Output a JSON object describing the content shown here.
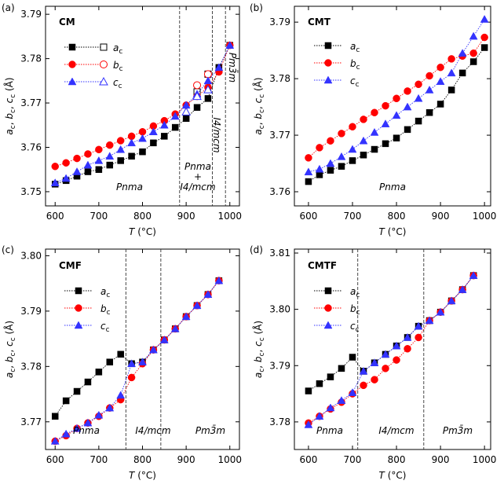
{
  "chart_data": [
    {
      "type": "line",
      "panel": "(a)",
      "x_label": "T (°C)",
      "y_label": "ac, bc, cc (Å)",
      "xlim": [
        578,
        1022
      ],
      "xticks": [
        600,
        700,
        800,
        900,
        1000
      ],
      "ylim": [
        3.7468,
        3.7918
      ],
      "yticks": [
        3.75,
        3.76,
        3.77,
        3.78,
        3.79
      ],
      "x": [
        600,
        625,
        650,
        675,
        700,
        725,
        750,
        775,
        800,
        825,
        850,
        875,
        900,
        925,
        950,
        975,
        1000
      ],
      "vlines": [
        885,
        960,
        990
      ],
      "annotations": [
        "CM",
        "Pnma",
        [
          "Pnma",
          "+",
          "I4/mcm"
        ],
        "I4/mcm",
        "Pm3̄m"
      ],
      "series": [
        {
          "name": "ac",
          "color": "#000000",
          "marker": "square",
          "values": [
            3.7517,
            3.7525,
            3.7535,
            3.7545,
            3.755,
            3.756,
            3.757,
            3.758,
            3.759,
            3.761,
            3.7625,
            3.7645,
            3.7665,
            3.769,
            3.771,
            3.778,
            3.783
          ],
          "open_values": [
            null,
            null,
            null,
            null,
            null,
            null,
            null,
            null,
            null,
            null,
            null,
            null,
            null,
            3.7725,
            3.7765,
            null,
            null
          ]
        },
        {
          "name": "bc",
          "color": "#ff0000",
          "marker": "circle",
          "values": [
            3.7557,
            3.7565,
            3.7575,
            3.7585,
            3.7595,
            3.7605,
            3.7615,
            3.7625,
            3.7635,
            3.7648,
            3.766,
            3.7675,
            3.7695,
            3.7715,
            3.7735,
            3.777,
            3.783
          ],
          "open_values": [
            null,
            null,
            null,
            null,
            null,
            null,
            null,
            null,
            null,
            null,
            null,
            null,
            null,
            3.774,
            3.7765,
            null,
            null
          ]
        },
        {
          "name": "cc",
          "color": "#3333ff",
          "marker": "triangle",
          "values": [
            3.752,
            3.753,
            3.7545,
            3.756,
            3.757,
            3.758,
            3.7595,
            3.761,
            3.762,
            3.7635,
            3.765,
            3.767,
            3.7695,
            3.772,
            3.775,
            3.778,
            3.783
          ],
          "open_values": [
            null,
            null,
            null,
            null,
            null,
            null,
            null,
            null,
            null,
            null,
            null,
            null,
            3.768,
            3.7715,
            3.773,
            null,
            null
          ]
        }
      ]
    },
    {
      "type": "line",
      "panel": "(b)",
      "x_label": "T (°C)",
      "y_label": "ac, bc, cc (Å)",
      "xlim": [
        568,
        1014
      ],
      "xticks": [
        600,
        700,
        800,
        900,
        1000
      ],
      "ylim": [
        3.7575,
        3.7928
      ],
      "yticks": [
        3.76,
        3.77,
        3.78,
        3.79
      ],
      "x": [
        600,
        625,
        650,
        675,
        700,
        725,
        750,
        775,
        800,
        825,
        850,
        875,
        900,
        925,
        950,
        975,
        1000
      ],
      "vlines": [],
      "annotations": [
        "CMT",
        "Pnma"
      ],
      "series": [
        {
          "name": "ac",
          "color": "#000000",
          "marker": "square",
          "values": [
            3.7618,
            3.763,
            3.7638,
            3.7645,
            3.7655,
            3.7665,
            3.7675,
            3.7685,
            3.7695,
            3.771,
            3.7725,
            3.774,
            3.7755,
            3.778,
            3.781,
            3.783,
            3.7855
          ]
        },
        {
          "name": "bc",
          "color": "#ff0000",
          "marker": "circle",
          "values": [
            3.766,
            3.7678,
            3.769,
            3.7703,
            3.7715,
            3.7728,
            3.774,
            3.7752,
            3.7765,
            3.7778,
            3.779,
            3.7805,
            3.782,
            3.7835,
            3.784,
            3.7845,
            3.7873
          ]
        },
        {
          "name": "cc",
          "color": "#3333ff",
          "marker": "triangle",
          "values": [
            3.7635,
            3.764,
            3.765,
            3.7662,
            3.7675,
            3.769,
            3.7705,
            3.772,
            3.7735,
            3.775,
            3.7765,
            3.778,
            3.7795,
            3.781,
            3.7845,
            3.7875,
            3.7905
          ]
        }
      ]
    },
    {
      "type": "line",
      "panel": "(c)",
      "x_label": "T (°C)",
      "y_label": "ac, bc, cc (Å)",
      "xlim": [
        578,
        1022
      ],
      "xticks": [
        600,
        700,
        800,
        900,
        1000
      ],
      "ylim": [
        3.765,
        3.8012
      ],
      "yticks": [
        3.77,
        3.78,
        3.79,
        {
          "value": 3.8,
          "label": "3.80"
        }
      ],
      "x": [
        600,
        625,
        650,
        675,
        700,
        725,
        750,
        775,
        800,
        825,
        850,
        875,
        900,
        925,
        950,
        975
      ],
      "vlines": [
        762,
        842
      ],
      "annotations": [
        "CMF",
        "Pnma",
        "I4/mcm",
        "Pm3̄m"
      ],
      "series": [
        {
          "name": "ac",
          "color": "#000000",
          "marker": "square",
          "values": [
            3.771,
            3.7738,
            3.7755,
            3.7772,
            3.779,
            3.7808,
            3.7822,
            3.7805,
            3.7808,
            3.783,
            3.7848,
            3.7868,
            3.789,
            3.791,
            3.793,
            3.7955
          ]
        },
        {
          "name": "bc",
          "color": "#ff0000",
          "marker": "circle",
          "values": [
            3.7665,
            3.7675,
            3.7688,
            3.7698,
            3.771,
            3.7725,
            3.774,
            3.778,
            3.7805,
            3.783,
            3.7848,
            3.7868,
            3.789,
            3.791,
            3.793,
            3.7955
          ]
        },
        {
          "name": "cc",
          "color": "#3333ff",
          "marker": "triangle",
          "values": [
            3.7665,
            3.7678,
            3.7688,
            3.7698,
            3.7712,
            3.7725,
            3.7748,
            3.7805,
            3.7808,
            3.783,
            3.7848,
            3.7868,
            3.789,
            3.791,
            3.793,
            3.7955
          ]
        }
      ]
    },
    {
      "type": "line",
      "panel": "(d)",
      "x_label": "T (°C)",
      "y_label": "ac, bc, cc (Å)",
      "xlim": [
        568,
        1014
      ],
      "xticks": [
        600,
        700,
        800,
        900,
        1000
      ],
      "ylim": [
        3.7751,
        3.8107
      ],
      "yticks": [
        3.78,
        3.79,
        {
          "value": 3.8,
          "label": "3.80"
        },
        3.81
      ],
      "x": [
        600,
        625,
        650,
        675,
        700,
        725,
        750,
        775,
        800,
        825,
        850,
        875,
        900,
        925,
        950,
        975
      ],
      "vlines": [
        712,
        862
      ],
      "annotations": [
        "CMTF",
        "Pnma",
        "I4/mcm",
        "Pm3̄m"
      ],
      "series": [
        {
          "name": "ac",
          "color": "#000000",
          "marker": "square",
          "values": [
            3.7855,
            3.7868,
            3.788,
            3.7895,
            3.7915,
            3.789,
            3.7905,
            3.792,
            3.7935,
            3.795,
            3.797,
            3.798,
            3.7995,
            3.8015,
            3.8035,
            3.806
          ]
        },
        {
          "name": "bc",
          "color": "#ff0000",
          "marker": "circle",
          "values": [
            3.7798,
            3.781,
            3.7823,
            3.7835,
            3.785,
            3.7865,
            3.7875,
            3.7895,
            3.791,
            3.793,
            3.795,
            3.798,
            3.7995,
            3.8015,
            3.8035,
            3.806
          ]
        },
        {
          "name": "cc",
          "color": "#3333ff",
          "marker": "triangle",
          "values": [
            3.7795,
            3.781,
            3.7825,
            3.7838,
            3.7852,
            3.789,
            3.7905,
            3.792,
            3.7935,
            3.795,
            3.797,
            3.798,
            3.7995,
            3.8015,
            3.8035,
            3.806
          ]
        }
      ]
    }
  ]
}
